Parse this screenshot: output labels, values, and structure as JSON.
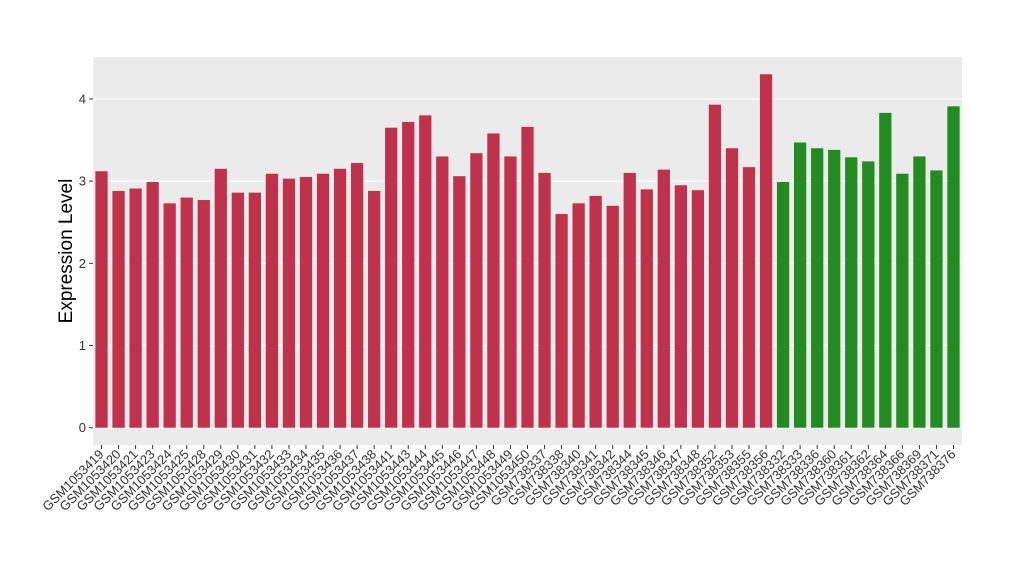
{
  "chart_data": {
    "type": "bar",
    "y_label": "Expression Level",
    "categories": [
      "GSM1053419",
      "GSM1053420",
      "GSM1053421",
      "GSM1053423",
      "GSM1053424",
      "GSM1053425",
      "GSM1053428",
      "GSM1053429",
      "GSM1053430",
      "GSM1053431",
      "GSM1053432",
      "GSM1053433",
      "GSM1053434",
      "GSM1053435",
      "GSM1053436",
      "GSM1053437",
      "GSM1053438",
      "GSM1053441",
      "GSM1053443",
      "GSM1053444",
      "GSM1053445",
      "GSM1053446",
      "GSM1053447",
      "GSM1053448",
      "GSM1053449",
      "GSM1053450",
      "GSM738337",
      "GSM738338",
      "GSM738340",
      "GSM738341",
      "GSM738342",
      "GSM738344",
      "GSM738345",
      "GSM738346",
      "GSM738347",
      "GSM738348",
      "GSM738352",
      "GSM738353",
      "GSM738355",
      "GSM738356",
      "GSM738332",
      "GSM738333",
      "GSM738336",
      "GSM738360",
      "GSM738361",
      "GSM738362",
      "GSM738364",
      "GSM738366",
      "GSM738369",
      "GSM738371",
      "GSM738376"
    ],
    "values": [
      3.12,
      2.88,
      2.91,
      2.99,
      2.73,
      2.8,
      2.77,
      3.15,
      2.86,
      2.86,
      3.09,
      3.03,
      3.05,
      3.09,
      3.15,
      3.22,
      2.88,
      3.65,
      3.72,
      3.8,
      3.3,
      3.06,
      3.34,
      3.58,
      3.3,
      3.66,
      3.1,
      2.6,
      2.73,
      2.82,
      2.7,
      3.1,
      2.9,
      3.14,
      2.95,
      2.89,
      3.93,
      3.4,
      3.17,
      4.3,
      2.99,
      3.47,
      3.4,
      3.38,
      3.29,
      3.24,
      3.83,
      3.09,
      3.3,
      3.13,
      3.91
    ],
    "colors": [
      "#c0324b",
      "#c0324b",
      "#c0324b",
      "#c0324b",
      "#c0324b",
      "#c0324b",
      "#c0324b",
      "#c0324b",
      "#c0324b",
      "#c0324b",
      "#c0324b",
      "#c0324b",
      "#c0324b",
      "#c0324b",
      "#c0324b",
      "#c0324b",
      "#c0324b",
      "#c0324b",
      "#c0324b",
      "#c0324b",
      "#c0324b",
      "#c0324b",
      "#c0324b",
      "#c0324b",
      "#c0324b",
      "#c0324b",
      "#c0324b",
      "#c0324b",
      "#c0324b",
      "#c0324b",
      "#c0324b",
      "#c0324b",
      "#c0324b",
      "#c0324b",
      "#c0324b",
      "#c0324b",
      "#c0324b",
      "#c0324b",
      "#c0324b",
      "#c0324b",
      "#228b22",
      "#228b22",
      "#228b22",
      "#228b22",
      "#228b22",
      "#228b22",
      "#228b22",
      "#228b22",
      "#228b22",
      "#228b22",
      "#228b22"
    ],
    "ylim": [
      -0.21,
      4.51
    ],
    "yticks": [
      0,
      1,
      2,
      3,
      4
    ],
    "grid": true
  }
}
